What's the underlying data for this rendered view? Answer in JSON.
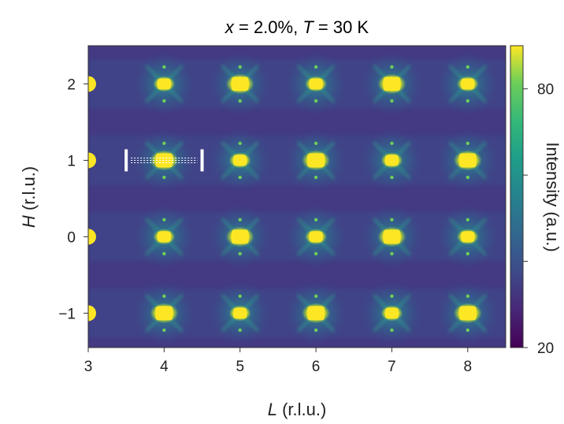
{
  "chart_data": {
    "type": "heatmap",
    "title_parts": [
      {
        "text": "x",
        "italic": true
      },
      {
        "text": " = 2.0%, ",
        "italic": false
      },
      {
        "text": "T",
        "italic": true
      },
      {
        "text": " = 30 K",
        "italic": false
      }
    ],
    "xlabel": {
      "symbol": "L",
      "unit": " (r.l.u.)"
    },
    "ylabel": {
      "symbol": "H",
      "unit": " (r.l.u.)"
    },
    "xlim": [
      3,
      8.5
    ],
    "ylim": [
      -1.45,
      2.5
    ],
    "xticks": [
      3,
      4,
      5,
      6,
      7,
      8
    ],
    "yticks": [
      -1,
      0,
      1,
      2
    ],
    "ytick_labels": [
      "−1",
      "0",
      "1",
      "2"
    ],
    "colorbar": {
      "label": "Intensity (a.u.)",
      "range": [
        20,
        90
      ],
      "tick_labels": [
        {
          "value": 80,
          "label": "80"
        },
        {
          "value": 20,
          "label": "20"
        }
      ],
      "minor_ticks": [
        40,
        60
      ],
      "colormap": "viridis"
    },
    "strong_peaks": [
      {
        "L": 4,
        "H": 2
      },
      {
        "L": 5,
        "H": 2
      },
      {
        "L": 6,
        "H": 2
      },
      {
        "L": 7,
        "H": 2
      },
      {
        "L": 8,
        "H": 2
      },
      {
        "L": 4,
        "H": 1
      },
      {
        "L": 5,
        "H": 1
      },
      {
        "L": 6,
        "H": 1
      },
      {
        "L": 7,
        "H": 1
      },
      {
        "L": 8,
        "H": 1
      },
      {
        "L": 4,
        "H": 0
      },
      {
        "L": 5,
        "H": 0
      },
      {
        "L": 6,
        "H": 0
      },
      {
        "L": 7,
        "H": 0
      },
      {
        "L": 8,
        "H": 0
      },
      {
        "L": 4,
        "H": -1
      },
      {
        "L": 5,
        "H": -1
      },
      {
        "L": 6,
        "H": -1
      },
      {
        "L": 7,
        "H": -1
      },
      {
        "L": 8,
        "H": -1
      }
    ],
    "cut_marker": {
      "L_range": [
        3.5,
        4.5
      ],
      "H": 1
    }
  }
}
